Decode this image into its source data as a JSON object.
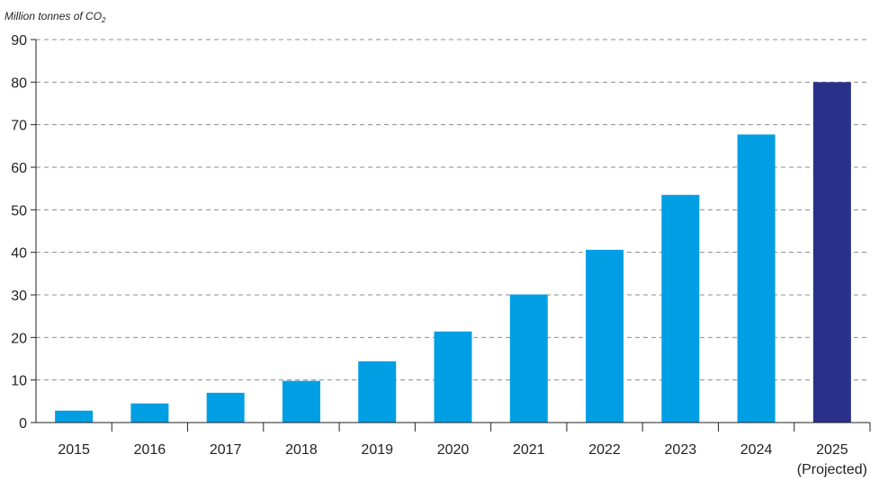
{
  "chart_data": {
    "type": "bar",
    "ylabel": "Million tonnes of CO",
    "ylabel_subscript": "2",
    "categories": [
      "2015",
      "2016",
      "2017",
      "2018",
      "2019",
      "2020",
      "2021",
      "2022",
      "2023",
      "2024",
      "2025"
    ],
    "category_sublabels": [
      "",
      "",
      "",
      "",
      "",
      "",
      "",
      "",
      "",
      "",
      "(Projected)"
    ],
    "values": [
      2.8,
      4.5,
      7.0,
      9.8,
      14.4,
      21.4,
      30.1,
      40.6,
      53.5,
      67.7,
      80.0
    ],
    "ylim": [
      0,
      90
    ],
    "yticks": [
      "0",
      "10",
      "20",
      "30",
      "40",
      "50",
      "60",
      "70",
      "80",
      "90"
    ],
    "grid": true,
    "colors": {
      "actual": "#009fe3",
      "projected": "#29318b",
      "grid": "#8c8c8c",
      "axis": "#222222"
    }
  }
}
